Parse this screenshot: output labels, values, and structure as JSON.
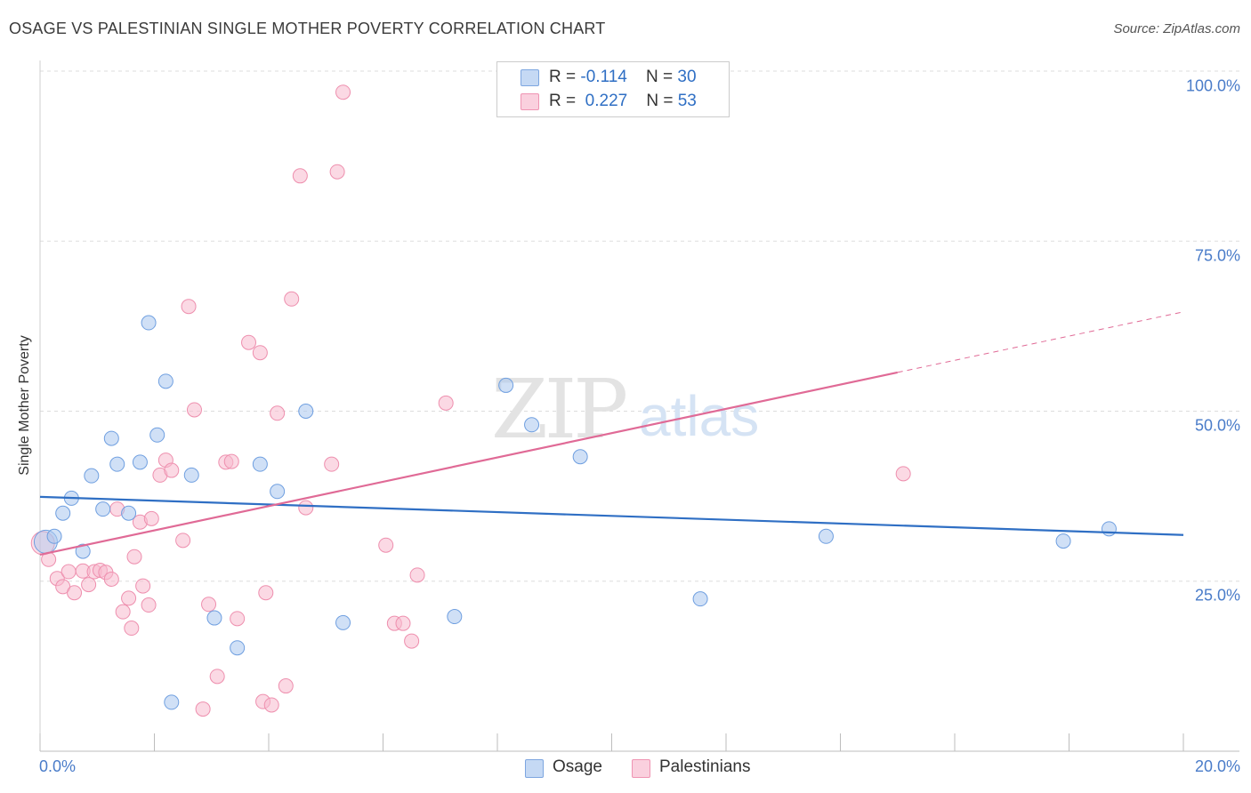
{
  "header": {
    "title": "OSAGE VS PALESTINIAN SINGLE MOTHER POVERTY CORRELATION CHART",
    "source": "Source: ZipAtlas.com"
  },
  "watermark": {
    "zip": "ZIP",
    "atlas": "atlas"
  },
  "legend_top": {
    "r_label": "R =",
    "n_label": "N =",
    "osage": {
      "r": "-0.114",
      "n": "30"
    },
    "palestinians": {
      "r": "0.227",
      "n": "53"
    }
  },
  "legend_bottom": {
    "osage": "Osage",
    "palestinians": "Palestinians"
  },
  "colors": {
    "osage_fill": "#a9c6ee",
    "osage_stroke": "#6f9fe0",
    "osage_line": "#2f6fc4",
    "pal_fill": "#f7b9cd",
    "pal_stroke": "#ee8fae",
    "pal_line": "#e06a96",
    "tick_text": "#4a7cc9",
    "grid": "#dddddd"
  },
  "chart_data": {
    "type": "scatter",
    "title": "OSAGE VS PALESTINIAN SINGLE MOTHER POVERTY CORRELATION CHART",
    "xlabel": "",
    "ylabel": "Single Mother Poverty",
    "xlim": [
      0,
      20
    ],
    "ylim": [
      0,
      100
    ],
    "x_ticks": [
      "0.0%",
      "20.0%"
    ],
    "y_ticks": [
      "25.0%",
      "50.0%",
      "75.0%",
      "100.0%"
    ],
    "grid": true,
    "legend_position": "top-center",
    "series": [
      {
        "name": "Osage",
        "r": -0.114,
        "n": 30,
        "trend": {
          "x": [
            0,
            20
          ],
          "y": [
            37.4,
            31.8
          ]
        },
        "points": [
          [
            0.1,
            30.8
          ],
          [
            0.25,
            31.6
          ],
          [
            0.4,
            35.0
          ],
          [
            0.55,
            37.2
          ],
          [
            0.75,
            29.4
          ],
          [
            0.9,
            40.5
          ],
          [
            1.1,
            35.6
          ],
          [
            1.25,
            46.0
          ],
          [
            1.35,
            42.2
          ],
          [
            1.55,
            35.0
          ],
          [
            1.75,
            42.5
          ],
          [
            1.9,
            63.0
          ],
          [
            2.05,
            46.5
          ],
          [
            2.2,
            54.4
          ],
          [
            2.3,
            7.2
          ],
          [
            2.65,
            40.6
          ],
          [
            3.05,
            19.6
          ],
          [
            3.45,
            15.2
          ],
          [
            3.85,
            42.2
          ],
          [
            4.15,
            38.2
          ],
          [
            4.65,
            50.0
          ],
          [
            5.3,
            18.9
          ],
          [
            7.25,
            19.8
          ],
          [
            8.15,
            53.8
          ],
          [
            8.6,
            48.0
          ],
          [
            9.45,
            43.3
          ],
          [
            11.55,
            22.4
          ],
          [
            13.75,
            31.6
          ],
          [
            17.9,
            30.9
          ],
          [
            18.7,
            32.7
          ]
        ]
      },
      {
        "name": "Palestinians",
        "r": 0.227,
        "n": 53,
        "trend": {
          "x": [
            0,
            15.0
          ],
          "y": [
            28.9,
            55.7
          ]
        },
        "trend_dashed": {
          "x": [
            15.0,
            20.0
          ],
          "y": [
            55.7,
            64.6
          ]
        },
        "points": [
          [
            0.05,
            30.6
          ],
          [
            0.15,
            28.2
          ],
          [
            0.3,
            25.4
          ],
          [
            0.4,
            24.2
          ],
          [
            0.5,
            26.4
          ],
          [
            0.6,
            23.3
          ],
          [
            0.75,
            26.5
          ],
          [
            0.85,
            24.5
          ],
          [
            0.95,
            26.4
          ],
          [
            1.05,
            26.6
          ],
          [
            1.15,
            26.3
          ],
          [
            1.25,
            25.3
          ],
          [
            1.35,
            35.6
          ],
          [
            1.45,
            20.5
          ],
          [
            1.55,
            22.5
          ],
          [
            1.6,
            18.1
          ],
          [
            1.65,
            28.6
          ],
          [
            1.75,
            33.7
          ],
          [
            1.8,
            24.3
          ],
          [
            1.9,
            21.5
          ],
          [
            1.95,
            34.2
          ],
          [
            2.1,
            40.6
          ],
          [
            2.2,
            42.8
          ],
          [
            2.3,
            41.3
          ],
          [
            2.5,
            31.0
          ],
          [
            2.6,
            65.4
          ],
          [
            2.7,
            50.2
          ],
          [
            2.85,
            6.2
          ],
          [
            2.95,
            21.6
          ],
          [
            3.1,
            11.0
          ],
          [
            3.25,
            42.5
          ],
          [
            3.35,
            42.6
          ],
          [
            3.45,
            19.5
          ],
          [
            3.65,
            60.1
          ],
          [
            3.85,
            58.6
          ],
          [
            3.9,
            7.3
          ],
          [
            3.95,
            23.3
          ],
          [
            4.05,
            6.8
          ],
          [
            4.15,
            49.7
          ],
          [
            4.3,
            9.6
          ],
          [
            4.4,
            66.5
          ],
          [
            4.55,
            84.6
          ],
          [
            4.65,
            35.8
          ],
          [
            5.1,
            42.2
          ],
          [
            5.2,
            85.2
          ],
          [
            5.3,
            96.9
          ],
          [
            6.05,
            30.3
          ],
          [
            6.2,
            18.8
          ],
          [
            6.35,
            18.8
          ],
          [
            6.5,
            16.2
          ],
          [
            6.6,
            25.9
          ],
          [
            7.1,
            51.2
          ],
          [
            15.1,
            40.8
          ]
        ]
      }
    ]
  }
}
